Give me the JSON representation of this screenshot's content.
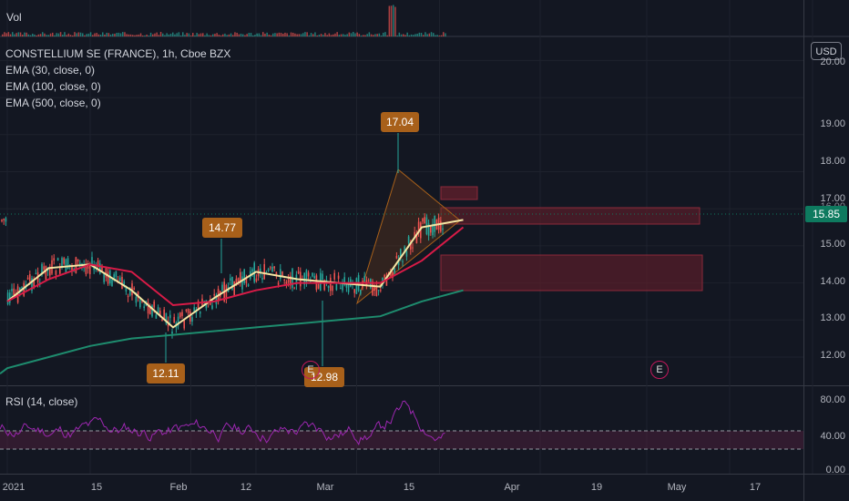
{
  "header": {
    "symbol_line": "CONSTELLIUM SE (FRANCE), 1h, Cboe BZX",
    "indicators": [
      "EMA (30, close, 0)",
      "EMA (100, close, 0)",
      "EMA (500, close, 0)"
    ],
    "volume_label": "Vol",
    "rsi_label": "RSI (14, close)",
    "currency": "USD"
  },
  "price_axis": {
    "ticks": [
      "20.00",
      "19.00",
      "18.00",
      "17.00",
      "16.00",
      "15.00",
      "14.00",
      "13.00",
      "12.00"
    ],
    "current_price": "15.85",
    "current_price_color": "#0e7a5f"
  },
  "rsi_axis": {
    "ticks": [
      "80.00",
      "40.00",
      "0.00"
    ]
  },
  "time_axis": {
    "ticks": [
      "2021",
      "15",
      "Feb",
      "12",
      "Mar",
      "15",
      "Apr",
      "19",
      "May",
      "17"
    ]
  },
  "callouts": [
    "14.77",
    "17.04",
    "12.11",
    "12.98"
  ],
  "earnings_markers": [
    "E",
    "E"
  ],
  "colors": {
    "background": "#131722",
    "ema30": "#f5e6a3",
    "ema100": "#d81b47",
    "ema500": "#1e8c6e",
    "rsi": "#9c27b0",
    "callout": "#a8601a",
    "zone": "#5a1e2a"
  },
  "chart_data": {
    "type": "line",
    "title": "CONSTELLIUM SE (FRANCE), 1h, Cboe BZX",
    "series": [
      {
        "name": "EMA (30, close, 0)",
        "x": [
          "2021-01-01",
          "2021-01-08",
          "2021-01-15",
          "2021-01-22",
          "2021-01-29",
          "2021-02-05",
          "2021-02-12",
          "2021-02-19",
          "2021-02-26",
          "2021-03-05",
          "2021-03-12",
          "2021-03-19"
        ],
        "values": [
          13.5,
          14.4,
          14.5,
          13.8,
          12.8,
          13.6,
          14.3,
          14.1,
          14.0,
          13.9,
          15.5,
          15.7
        ]
      },
      {
        "name": "EMA (100, close, 0)",
        "x": [
          "2021-01-01",
          "2021-01-08",
          "2021-01-15",
          "2021-01-22",
          "2021-01-29",
          "2021-02-05",
          "2021-02-12",
          "2021-02-19",
          "2021-02-26",
          "2021-03-05",
          "2021-03-12",
          "2021-03-19"
        ],
        "values": [
          13.5,
          14.1,
          14.5,
          14.3,
          13.4,
          13.5,
          13.8,
          14.0,
          14.0,
          14.0,
          14.6,
          15.5
        ]
      },
      {
        "name": "EMA (500, close, 0)",
        "x": [
          "2021-01-01",
          "2021-01-08",
          "2021-01-15",
          "2021-01-22",
          "2021-01-29",
          "2021-02-05",
          "2021-02-12",
          "2021-02-19",
          "2021-02-26",
          "2021-03-05",
          "2021-03-12",
          "2021-03-19"
        ],
        "values": [
          11.7,
          12.0,
          12.3,
          12.5,
          12.6,
          12.7,
          12.8,
          12.9,
          13.0,
          13.1,
          13.5,
          13.8
        ]
      }
    ],
    "annotations": [
      {
        "label": "14.77",
        "value": 14.77
      },
      {
        "label": "17.04",
        "value": 17.04
      },
      {
        "label": "12.11",
        "value": 12.11
      },
      {
        "label": "12.98",
        "value": 12.98
      }
    ],
    "ylim": [
      11.3,
      20.2
    ],
    "rsi_ylim": [
      0,
      95
    ],
    "rsi_levels": [
      30,
      50
    ]
  }
}
